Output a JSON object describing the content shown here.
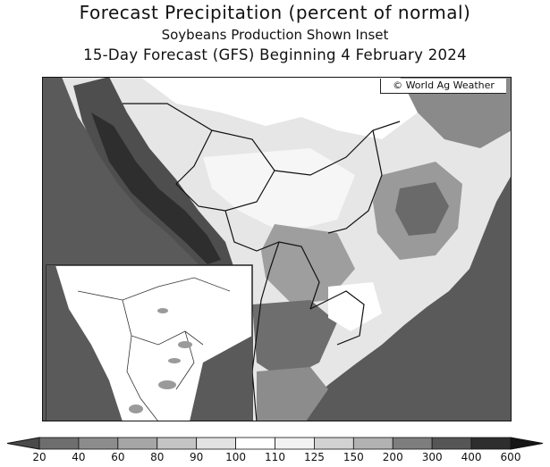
{
  "header": {
    "title": "Forecast Precipitation (percent of normal)",
    "subtitle": "Soybeans Production Shown Inset",
    "forecast_line": "15-Day Forecast (GFS) Beginning 4 February 2024"
  },
  "map": {
    "credit": "© World Ag Weather",
    "region": "South America",
    "ocean_color": "#5a5a5a",
    "inset_topic": "Soybeans production"
  },
  "legend": {
    "ticks": [
      "20",
      "40",
      "60",
      "80",
      "90",
      "100",
      "110",
      "125",
      "150",
      "200",
      "300",
      "400",
      "600"
    ],
    "colors": [
      "#4a4a4a",
      "#6e6e6e",
      "#8c8c8c",
      "#a6a6a6",
      "#c4c4c4",
      "#e2e2e2",
      "#ffffff",
      "#f2f2f2",
      "#d2d2d2",
      "#b2b2b2",
      "#7e7e7e",
      "#565656",
      "#2e2e2e",
      "#161616"
    ]
  }
}
